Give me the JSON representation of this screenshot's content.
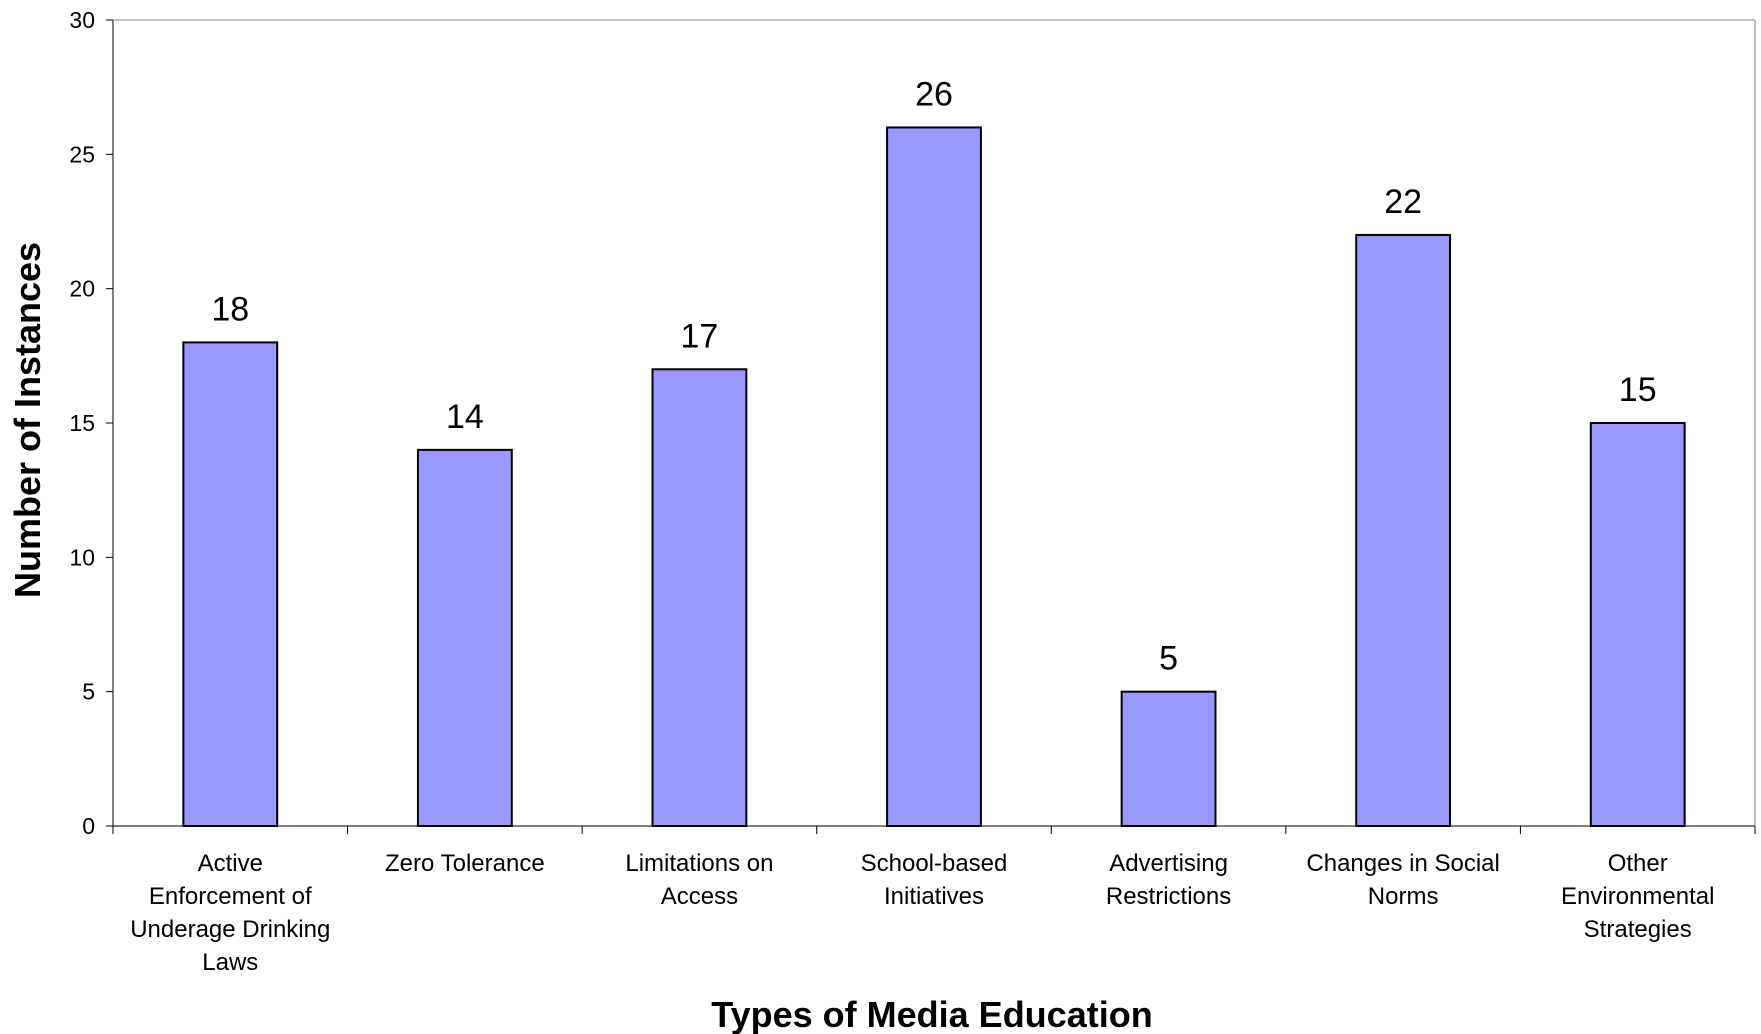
{
  "chart_data": {
    "type": "bar",
    "title": "",
    "xlabel": "Types of Media Education",
    "ylabel": "Number of Instances",
    "ylim": [
      0,
      30
    ],
    "yticks": [
      0,
      5,
      10,
      15,
      20,
      25,
      30
    ],
    "grid": false,
    "legend": "none",
    "bar_color": "#9999FF",
    "bar_edge_color": "#000000",
    "categories": [
      [
        "Active",
        "Enforcement of",
        "Underage Drinking",
        "Laws"
      ],
      [
        "Zero Tolerance"
      ],
      [
        "Limitations on",
        "Access"
      ],
      [
        "School-based",
        "Initiatives"
      ],
      [
        "Advertising",
        "Restrictions"
      ],
      [
        "Changes in Social",
        "Norms"
      ],
      [
        "Other",
        "Environmental",
        "Strategies"
      ]
    ],
    "values": [
      18,
      14,
      17,
      26,
      5,
      22,
      15
    ]
  }
}
